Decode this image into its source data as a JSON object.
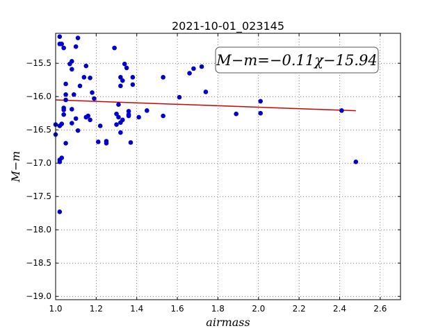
{
  "chart_data": {
    "type": "scatter",
    "title": "2021-10-01_023145",
    "xlabel": "airmass",
    "ylabel": "M−m",
    "xlim": [
      1.0,
      2.7
    ],
    "ylim": [
      -19.05,
      -15.05
    ],
    "xticks": [
      "1.0",
      "1.2",
      "1.4",
      "1.6",
      "1.8",
      "2.0",
      "2.2",
      "2.4",
      "2.6"
    ],
    "xtick_values": [
      1.0,
      1.2,
      1.4,
      1.6,
      1.8,
      2.0,
      2.2,
      2.4,
      2.6
    ],
    "yticks": [
      "−15.5",
      "−16.0",
      "−16.5",
      "−17.0",
      "−17.5",
      "−18.0",
      "−18.5",
      "−19.0"
    ],
    "ytick_values": [
      -15.5,
      -16.0,
      -16.5,
      -17.0,
      -17.5,
      -18.0,
      -18.5,
      -19.0
    ],
    "grid": true,
    "annotation": "M−m=−0.11χ−15.94",
    "marker_color": "#0000cc",
    "fit_color": "#cc0000",
    "fit": {
      "slope": -0.11,
      "intercept": -15.94,
      "x_range": [
        1.0,
        2.48
      ]
    },
    "points": [
      [
        1.0,
        -16.57
      ],
      [
        1.0,
        -16.42
      ],
      [
        1.02,
        -15.1
      ],
      [
        1.02,
        -15.21
      ],
      [
        1.03,
        -15.21
      ],
      [
        1.02,
        -16.44
      ],
      [
        1.03,
        -16.41
      ],
      [
        1.02,
        -16.95
      ],
      [
        1.02,
        -16.98
      ],
      [
        1.03,
        -16.92
      ],
      [
        1.02,
        -17.73
      ],
      [
        1.04,
        -15.27
      ],
      [
        1.04,
        -16.17
      ],
      [
        1.04,
        -16.2
      ],
      [
        1.04,
        -16.27
      ],
      [
        1.05,
        -15.81
      ],
      [
        1.05,
        -15.97
      ],
      [
        1.05,
        -16.05
      ],
      [
        1.05,
        -16.7
      ],
      [
        1.07,
        -15.51
      ],
      [
        1.08,
        -15.59
      ],
      [
        1.08,
        -15.47
      ],
      [
        1.08,
        -16.19
      ],
      [
        1.08,
        -16.4
      ],
      [
        1.09,
        -15.97
      ],
      [
        1.1,
        -16.33
      ],
      [
        1.1,
        -15.25
      ],
      [
        1.11,
        -15.12
      ],
      [
        1.11,
        -16.51
      ],
      [
        1.12,
        -15.84
      ],
      [
        1.14,
        -15.71
      ],
      [
        1.15,
        -15.54
      ],
      [
        1.15,
        -16.31
      ],
      [
        1.16,
        -16.29
      ],
      [
        1.17,
        -15.72
      ],
      [
        1.17,
        -16.35
      ],
      [
        1.18,
        -15.94
      ],
      [
        1.19,
        -16.03
      ],
      [
        1.21,
        -16.68
      ],
      [
        1.22,
        -16.44
      ],
      [
        1.25,
        -16.67
      ],
      [
        1.25,
        -16.7
      ],
      [
        1.29,
        -15.27
      ],
      [
        1.3,
        -16.26
      ],
      [
        1.3,
        -16.42
      ],
      [
        1.31,
        -16.31
      ],
      [
        1.31,
        -16.12
      ],
      [
        1.32,
        -15.71
      ],
      [
        1.32,
        -15.84
      ],
      [
        1.32,
        -16.39
      ],
      [
        1.33,
        -15.76
      ],
      [
        1.32,
        -16.54
      ],
      [
        1.33,
        -16.35
      ],
      [
        1.34,
        -15.51
      ],
      [
        1.35,
        -15.57
      ],
      [
        1.36,
        -16.22
      ],
      [
        1.36,
        -16.27
      ],
      [
        1.36,
        -16.29
      ],
      [
        1.37,
        -16.69
      ],
      [
        1.38,
        -15.71
      ],
      [
        1.38,
        -15.82
      ],
      [
        1.41,
        -16.31
      ],
      [
        1.45,
        -16.21
      ],
      [
        1.53,
        -15.71
      ],
      [
        1.53,
        -16.29
      ],
      [
        1.61,
        -16.01
      ],
      [
        1.66,
        -15.65
      ],
      [
        1.68,
        -15.58
      ],
      [
        1.72,
        -15.55
      ],
      [
        1.74,
        -15.93
      ],
      [
        1.89,
        -16.26
      ],
      [
        2.01,
        -16.07
      ],
      [
        2.01,
        -16.25
      ],
      [
        2.41,
        -16.21
      ],
      [
        2.48,
        -16.98
      ]
    ]
  }
}
